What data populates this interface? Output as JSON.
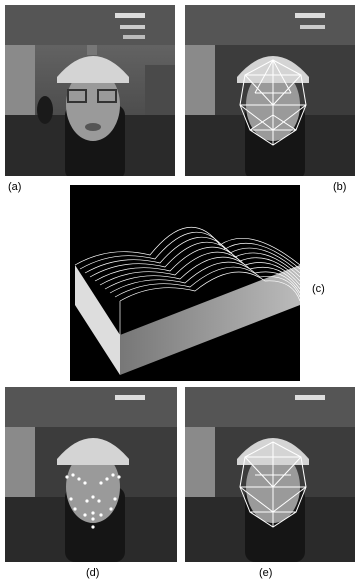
{
  "figure": {
    "panels": [
      {
        "id": "a",
        "label": "(a)",
        "content": "photo",
        "overlay": "none"
      },
      {
        "id": "b",
        "label": "(b)",
        "content": "photo",
        "overlay": "triangular-mesh"
      },
      {
        "id": "c",
        "label": "(c)",
        "content": "3d-surface-plot",
        "overlay": "none"
      },
      {
        "id": "d",
        "label": "(d)",
        "content": "photo",
        "overlay": "feature-points"
      },
      {
        "id": "e",
        "label": "(e)",
        "content": "photo",
        "overlay": "triangular-mesh"
      }
    ]
  },
  "colors": {
    "background": "#ffffff",
    "photo_dark": "#1e1e1e",
    "mesh": "#ffffff",
    "plot_bg": "#000000"
  }
}
